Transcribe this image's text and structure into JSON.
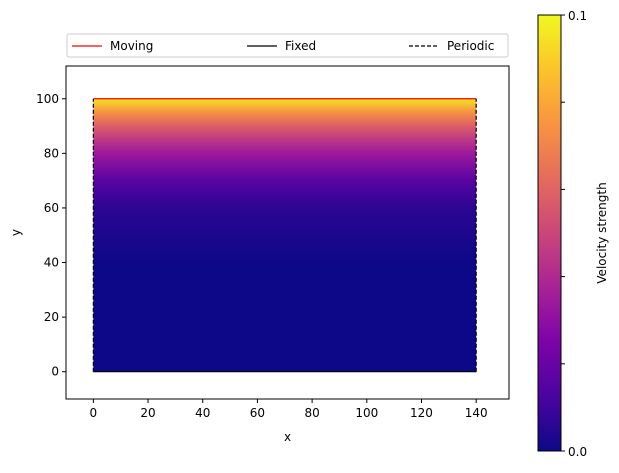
{
  "chart_data": {
    "type": "heatmap",
    "title": "",
    "xlabel": "x",
    "ylabel": "y",
    "xlim": [
      -10,
      152
    ],
    "ylim": [
      -10,
      112
    ],
    "x_ticks": [
      0,
      20,
      40,
      60,
      80,
      100,
      120,
      140
    ],
    "y_ticks": [
      0,
      20,
      40,
      60,
      80,
      100
    ],
    "domain": {
      "x": [
        0,
        140
      ],
      "y": [
        0,
        100
      ]
    },
    "field": {
      "description_units": "velocity strength vs y",
      "y": [
        0,
        40,
        60,
        70,
        80,
        85,
        90,
        95,
        100
      ],
      "values": [
        0.0,
        0.0,
        0.006,
        0.016,
        0.034,
        0.045,
        0.058,
        0.074,
        0.095
      ]
    },
    "boundaries": [
      {
        "name": "Moving",
        "color": "#ff0000",
        "dash": "solid",
        "segment": [
          [
            0,
            100
          ],
          [
            140,
            100
          ]
        ]
      },
      {
        "name": "Fixed",
        "color": "#000000",
        "dash": "solid",
        "segment": [
          [
            0,
            0
          ],
          [
            140,
            0
          ]
        ]
      },
      {
        "name": "Periodic",
        "color": "#000000",
        "dash": "dashed",
        "segment": [
          [
            0,
            0
          ],
          [
            0,
            100
          ]
        ]
      },
      {
        "name": "Periodic",
        "color": "#000000",
        "dash": "dashed",
        "segment": [
          [
            140,
            0
          ],
          [
            140,
            100
          ]
        ]
      }
    ],
    "legend": {
      "placement": "top",
      "entries": [
        {
          "label": "Moving",
          "color": "#ff0000",
          "dash": "solid"
        },
        {
          "label": "Fixed",
          "color": "#000000",
          "dash": "solid"
        },
        {
          "label": "Periodic",
          "color": "#000000",
          "dash": "dashed"
        }
      ]
    },
    "colorbar": {
      "label": "Velocity strength",
      "min": 0.0,
      "max": 0.1,
      "tick_labels": [
        "0.0",
        "0.1"
      ],
      "colormap": "plasma"
    }
  }
}
